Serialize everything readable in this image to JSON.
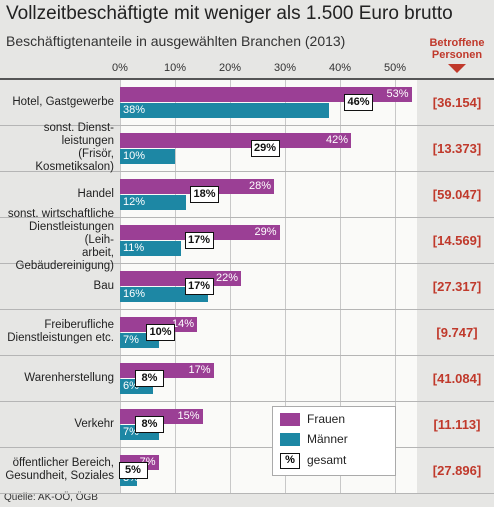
{
  "chart_data": {
    "type": "bar",
    "orientation": "horizontal",
    "title": "Vollzeitbeschäftigte mit weniger als 1.500 Euro brutto",
    "subtitle": "Beschäftigtenanteile in ausgewählten Branchen (2013)",
    "categories": [
      "Hotel, Gastgewerbe",
      "sonst. Dienst-\nleistungen\n(Frisör, Kosmetiksalon)",
      "Handel",
      "sonst. wirtschaftliche\nDienstleistungen (Leih-\narbeit, Gebäudereinigung)",
      "Bau",
      "Freiberufliche\nDienstleistungen etc.",
      "Warenherstellung",
      "Verkehr",
      "öffentlicher Bereich,\nGesundheit, Soziales"
    ],
    "series": [
      {
        "name": "Frauen",
        "color": "#9b3f95",
        "values": [
          53,
          42,
          28,
          29,
          22,
          14,
          17,
          15,
          7
        ],
        "value_labels": [
          "53%",
          "42%",
          "28%",
          "29%",
          "22%",
          "14%",
          "17%",
          "15%",
          "7%"
        ]
      },
      {
        "name": "Männer",
        "color": "#1d87a4",
        "values": [
          38,
          10,
          12,
          11,
          16,
          7,
          6,
          7,
          3
        ],
        "value_labels": [
          "38%",
          "10%",
          "12%",
          "11%",
          "16%",
          "7%",
          "6%",
          "7%",
          "3%"
        ]
      },
      {
        "name": "gesamt",
        "legend_symbol": "%",
        "values": [
          46,
          29,
          18,
          17,
          17,
          10,
          8,
          8,
          5
        ],
        "value_labels": [
          "46%",
          "29%",
          "18%",
          "17%",
          "17%",
          "10%",
          "8%",
          "8%",
          "5%"
        ]
      }
    ],
    "xlim": [
      0,
      54
    ],
    "xticks": [
      {
        "value": 0,
        "label": "0%"
      },
      {
        "value": 10,
        "label": "10%"
      },
      {
        "value": 20,
        "label": "20%"
      },
      {
        "value": 30,
        "label": "30%"
      },
      {
        "value": 40,
        "label": "40%"
      },
      {
        "value": 50,
        "label": "50%"
      }
    ],
    "grid": true,
    "affected": {
      "title": "Betroffene Personen",
      "color": "#c0392b",
      "values": [
        36154,
        13373,
        59047,
        14569,
        27317,
        9747,
        41084,
        11113,
        27896
      ],
      "value_labels": [
        "[36.154]",
        "[13.373]",
        "[59.047]",
        "[14.569]",
        "[27.317]",
        "[9.747]",
        "[41.084]",
        "[11.113]",
        "[27.896]"
      ]
    },
    "source": "Quelle: AK-OÖ, ÖGB"
  }
}
